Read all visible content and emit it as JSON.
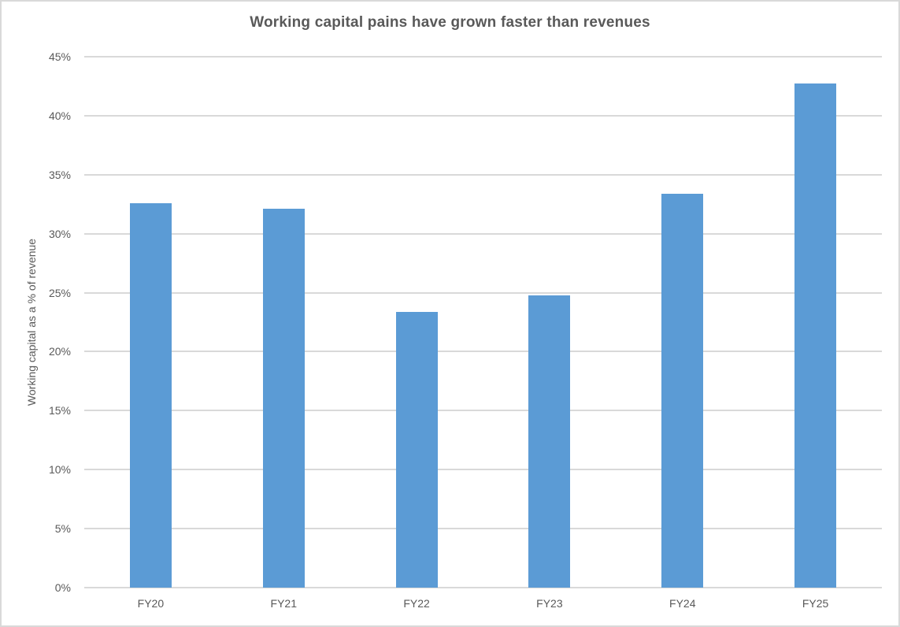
{
  "chart_data": {
    "type": "bar",
    "title": "Working capital pains have grown faster than revenues",
    "xlabel": "",
    "ylabel": "Working capital as a % of revenue",
    "categories": [
      "FY20",
      "FY21",
      "FY22",
      "FY23",
      "FY24",
      "FY25"
    ],
    "values": [
      32.6,
      32.1,
      23.4,
      24.8,
      33.4,
      42.7
    ],
    "ylim": [
      0,
      45
    ],
    "ytick_step": 5,
    "ytick_values": [
      0,
      5,
      10,
      15,
      20,
      25,
      30,
      35,
      40,
      45
    ],
    "ytick_labels": [
      "0%",
      "5%",
      "10%",
      "15%",
      "20%",
      "25%",
      "30%",
      "35%",
      "40%",
      "45%"
    ],
    "grid": true,
    "legend": false,
    "legend_position": "none",
    "colors": {
      "bar": "#5B9BD5",
      "gridline": "#D9D9D9",
      "axis_text": "#595959",
      "title_text": "#595959",
      "border": "#D9D9D9",
      "background": "#FFFFFF"
    }
  }
}
